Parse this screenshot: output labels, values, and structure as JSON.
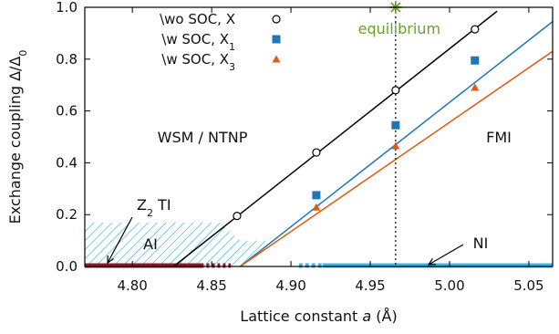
{
  "chart_data": {
    "type": "line",
    "xlabel_prefix": "Lattice constant ",
    "xlabel_var": "a",
    "xlabel_suffix": " (Å)",
    "ylabel_main": "Exchange coupling Δ/Δ",
    "ylabel_sub": "0",
    "xlim": [
      4.77,
      5.065
    ],
    "ylim": [
      0,
      1.0
    ],
    "x_ticks": [
      4.8,
      4.85,
      4.9,
      4.95,
      5.0,
      5.05
    ],
    "x_tick_labels": [
      "4.80",
      "4.85",
      "4.90",
      "4.95",
      "5.00",
      "5.05"
    ],
    "y_ticks": [
      0.0,
      0.2,
      0.4,
      0.6,
      0.8,
      1.0
    ],
    "y_tick_labels": [
      "0.0",
      "0.2",
      "0.4",
      "0.6",
      "0.8",
      "1.0"
    ],
    "legend_placement": "top-center",
    "series": [
      {
        "name_main": "\\wo SOC, X",
        "name_sub": "",
        "color": "#000000",
        "marker": "circle-open",
        "line": [
          [
            4.826,
            0.0
          ],
          [
            5.03,
            0.985
          ]
        ],
        "points": [
          [
            4.866,
            0.195
          ],
          [
            4.916,
            0.44
          ],
          [
            4.966,
            0.68
          ],
          [
            5.016,
            0.915
          ]
        ]
      },
      {
        "name_main": "\\w SOC, X",
        "name_sub": "1",
        "color": "#1f77b4",
        "marker": "square",
        "line": [
          [
            4.868,
            0.0
          ],
          [
            5.065,
            0.945
          ]
        ],
        "points": [
          [
            4.916,
            0.275
          ],
          [
            4.966,
            0.545
          ],
          [
            5.016,
            0.795
          ]
        ]
      },
      {
        "name_main": "\\w SOC, X",
        "name_sub": "3",
        "color": "#e05a10",
        "marker": "triangle",
        "line": [
          [
            4.868,
            0.0
          ],
          [
            5.065,
            0.83
          ]
        ],
        "points": [
          [
            4.916,
            0.228
          ],
          [
            4.966,
            0.465
          ],
          [
            5.016,
            0.69
          ]
        ]
      }
    ],
    "equilibrium": {
      "x": 4.966,
      "label": "equilibrium",
      "color": "#6aa12a"
    },
    "regions": {
      "wsm": "WSM / NTNP",
      "fmi": "FMI",
      "ai": "AI",
      "ni": "NI",
      "z2_main": "Z",
      "z2_sub": "2",
      "z2_suffix": " TI"
    },
    "ai_region": {
      "x_start": 4.77,
      "x_end": 4.868,
      "y_top": 0.17
    },
    "z2_segment": {
      "x_start": 4.77,
      "x_end": 4.845,
      "color": "#8b1a2b"
    },
    "ni_segment": {
      "x_start": 4.905,
      "x_end": 5.065,
      "color": "#3cb4e0"
    }
  }
}
